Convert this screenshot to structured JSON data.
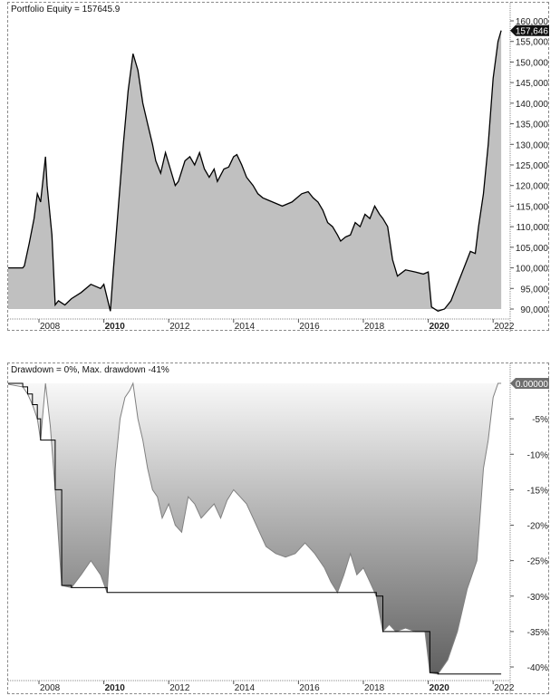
{
  "chart_data": [
    {
      "type": "area",
      "title": "Portfolio Equity = 157645.9",
      "xlabel": "",
      "ylabel": "",
      "x_ticks": [
        "2008",
        "2010",
        "2012",
        "2014",
        "2016",
        "2018",
        "2020",
        "2022"
      ],
      "x_ticks_bold": [
        "2010",
        "2020"
      ],
      "y_ticks": [
        "160,000",
        "155,000",
        "150,000",
        "145,000",
        "140,000",
        "135,000",
        "130,000",
        "125,000",
        "120,000",
        "115,000",
        "110,000",
        "105,000",
        "100,000",
        "95,000",
        "90,000"
      ],
      "ylim": [
        90000,
        160000
      ],
      "last_value_label": "157,646",
      "grid": false,
      "series": [
        {
          "name": "Portfolio Equity",
          "line_color": "#000000",
          "fill_color": "#c0c0c0",
          "x": [
            2006.9,
            2007.5,
            2007.55,
            2007.7,
            2007.85,
            2007.95,
            2008.05,
            2008.2,
            2008.25,
            2008.4,
            2008.5,
            2008.6,
            2008.8,
            2009.0,
            2009.3,
            2009.6,
            2009.9,
            2010.0,
            2010.2,
            2010.3,
            2010.45,
            2010.6,
            2010.75,
            2010.9,
            2011.05,
            2011.2,
            2011.35,
            2011.5,
            2011.6,
            2011.75,
            2011.9,
            2012.05,
            2012.2,
            2012.3,
            2012.5,
            2012.65,
            2012.8,
            2012.95,
            2013.1,
            2013.25,
            2013.4,
            2013.5,
            2013.7,
            2013.85,
            2014.0,
            2014.1,
            2014.25,
            2014.4,
            2014.6,
            2014.75,
            2014.9,
            2015.05,
            2015.2,
            2015.5,
            2015.8,
            2016.1,
            2016.3,
            2016.45,
            2016.6,
            2016.75,
            2016.9,
            2017.05,
            2017.2,
            2017.3,
            2017.45,
            2017.6,
            2017.75,
            2017.9,
            2018.05,
            2018.2,
            2018.35,
            2018.5,
            2018.6,
            2018.75,
            2018.9,
            2019.05,
            2019.3,
            2019.6,
            2019.85,
            2020.0,
            2020.1,
            2020.3,
            2020.5,
            2020.7,
            2020.85,
            2021.0,
            2021.15,
            2021.3,
            2021.45,
            2021.55,
            2021.7,
            2021.85,
            2022.0,
            2022.15,
            2022.25
          ],
          "values": [
            100000,
            100000,
            100500,
            106000,
            112000,
            118000,
            116000,
            127000,
            120000,
            108000,
            91000,
            92000,
            91000,
            92500,
            94000,
            96000,
            95000,
            96000,
            89500,
            100000,
            115000,
            130000,
            143000,
            152000,
            148000,
            140000,
            135000,
            130000,
            126000,
            123000,
            128000,
            124000,
            120000,
            121000,
            126000,
            127000,
            125000,
            128000,
            124000,
            122000,
            124000,
            121000,
            124000,
            124500,
            127000,
            127500,
            125000,
            122000,
            120000,
            118000,
            117000,
            116500,
            116000,
            115000,
            116000,
            118000,
            118500,
            117000,
            116000,
            114000,
            111000,
            110000,
            108000,
            106500,
            107500,
            108000,
            111000,
            110000,
            113000,
            112000,
            115000,
            113000,
            112000,
            110000,
            102000,
            98000,
            99500,
            99000,
            98500,
            99000,
            90500,
            89500,
            90000,
            92000,
            95000,
            98000,
            101000,
            104000,
            103500,
            110000,
            118000,
            130000,
            146000,
            155000,
            157646
          ]
        }
      ]
    },
    {
      "type": "area",
      "title": "Drawdown = 0%, Max. drawdown -41%",
      "xlabel": "",
      "ylabel": "",
      "x_ticks": [
        "2008",
        "2010",
        "2012",
        "2014",
        "2016",
        "2018",
        "2020",
        "2022"
      ],
      "x_ticks_bold": [
        "2010",
        "2020"
      ],
      "y_ticks": [
        "-5%",
        "-10%",
        "-15%",
        "-20%",
        "-25%",
        "-30%",
        "-35%",
        "-40%"
      ],
      "ylim": [
        -41.5,
        0
      ],
      "last_value_label": "0.00000",
      "grid": false,
      "series": [
        {
          "name": "Drawdown (%)",
          "line_color": "#808080",
          "fill_gradient": [
            "#f8f8f8",
            "#606060"
          ],
          "x": [
            2006.9,
            2007.5,
            2007.65,
            2007.8,
            2007.95,
            2008.05,
            2008.2,
            2008.35,
            2008.5,
            2008.7,
            2009.0,
            2009.3,
            2009.6,
            2009.9,
            2010.1,
            2010.2,
            2010.35,
            2010.5,
            2010.65,
            2010.8,
            2010.9,
            2011.05,
            2011.2,
            2011.35,
            2011.5,
            2011.65,
            2011.8,
            2012.0,
            2012.2,
            2012.4,
            2012.6,
            2012.8,
            2013.0,
            2013.2,
            2013.4,
            2013.6,
            2013.8,
            2014.0,
            2014.2,
            2014.4,
            2014.6,
            2014.8,
            2015.0,
            2015.3,
            2015.6,
            2015.9,
            2016.2,
            2016.5,
            2016.8,
            2017.0,
            2017.2,
            2017.4,
            2017.6,
            2017.8,
            2018.0,
            2018.2,
            2018.4,
            2018.6,
            2018.8,
            2019.0,
            2019.3,
            2019.6,
            2019.9,
            2020.05,
            2020.3,
            2020.6,
            2020.9,
            2021.2,
            2021.5,
            2021.7,
            2021.85,
            2022.0,
            2022.15,
            2022.25
          ],
          "values": [
            0,
            -0.5,
            -1.5,
            -3,
            -5,
            -8,
            0,
            -6,
            -15,
            -28.5,
            -28.8,
            -27,
            -25,
            -27,
            -29.5,
            -22,
            -12,
            -5,
            -2,
            -1,
            0,
            -5,
            -8,
            -12,
            -15,
            -16,
            -19,
            -17,
            -20,
            -21,
            -16,
            -17,
            -19,
            -18,
            -17,
            -19,
            -16.5,
            -15,
            -16,
            -17,
            -19,
            -21,
            -23,
            -24,
            -24.5,
            -24,
            -22.5,
            -24,
            -26,
            -28,
            -29.5,
            -27,
            -24,
            -27,
            -26,
            -28,
            -30,
            -35,
            -34,
            -35,
            -34.5,
            -35,
            -35,
            -40.8,
            -41,
            -39,
            -35,
            -29,
            -25,
            -12,
            -8,
            -2,
            0,
            0
          ]
        }
      ]
    }
  ],
  "panels": {
    "equity": {
      "title": "Portfolio Equity = 157645.9",
      "last_value": "157,646"
    },
    "drawdown": {
      "title": "Drawdown = 0%, Max. drawdown -41%",
      "last_value": "0.00000"
    }
  }
}
